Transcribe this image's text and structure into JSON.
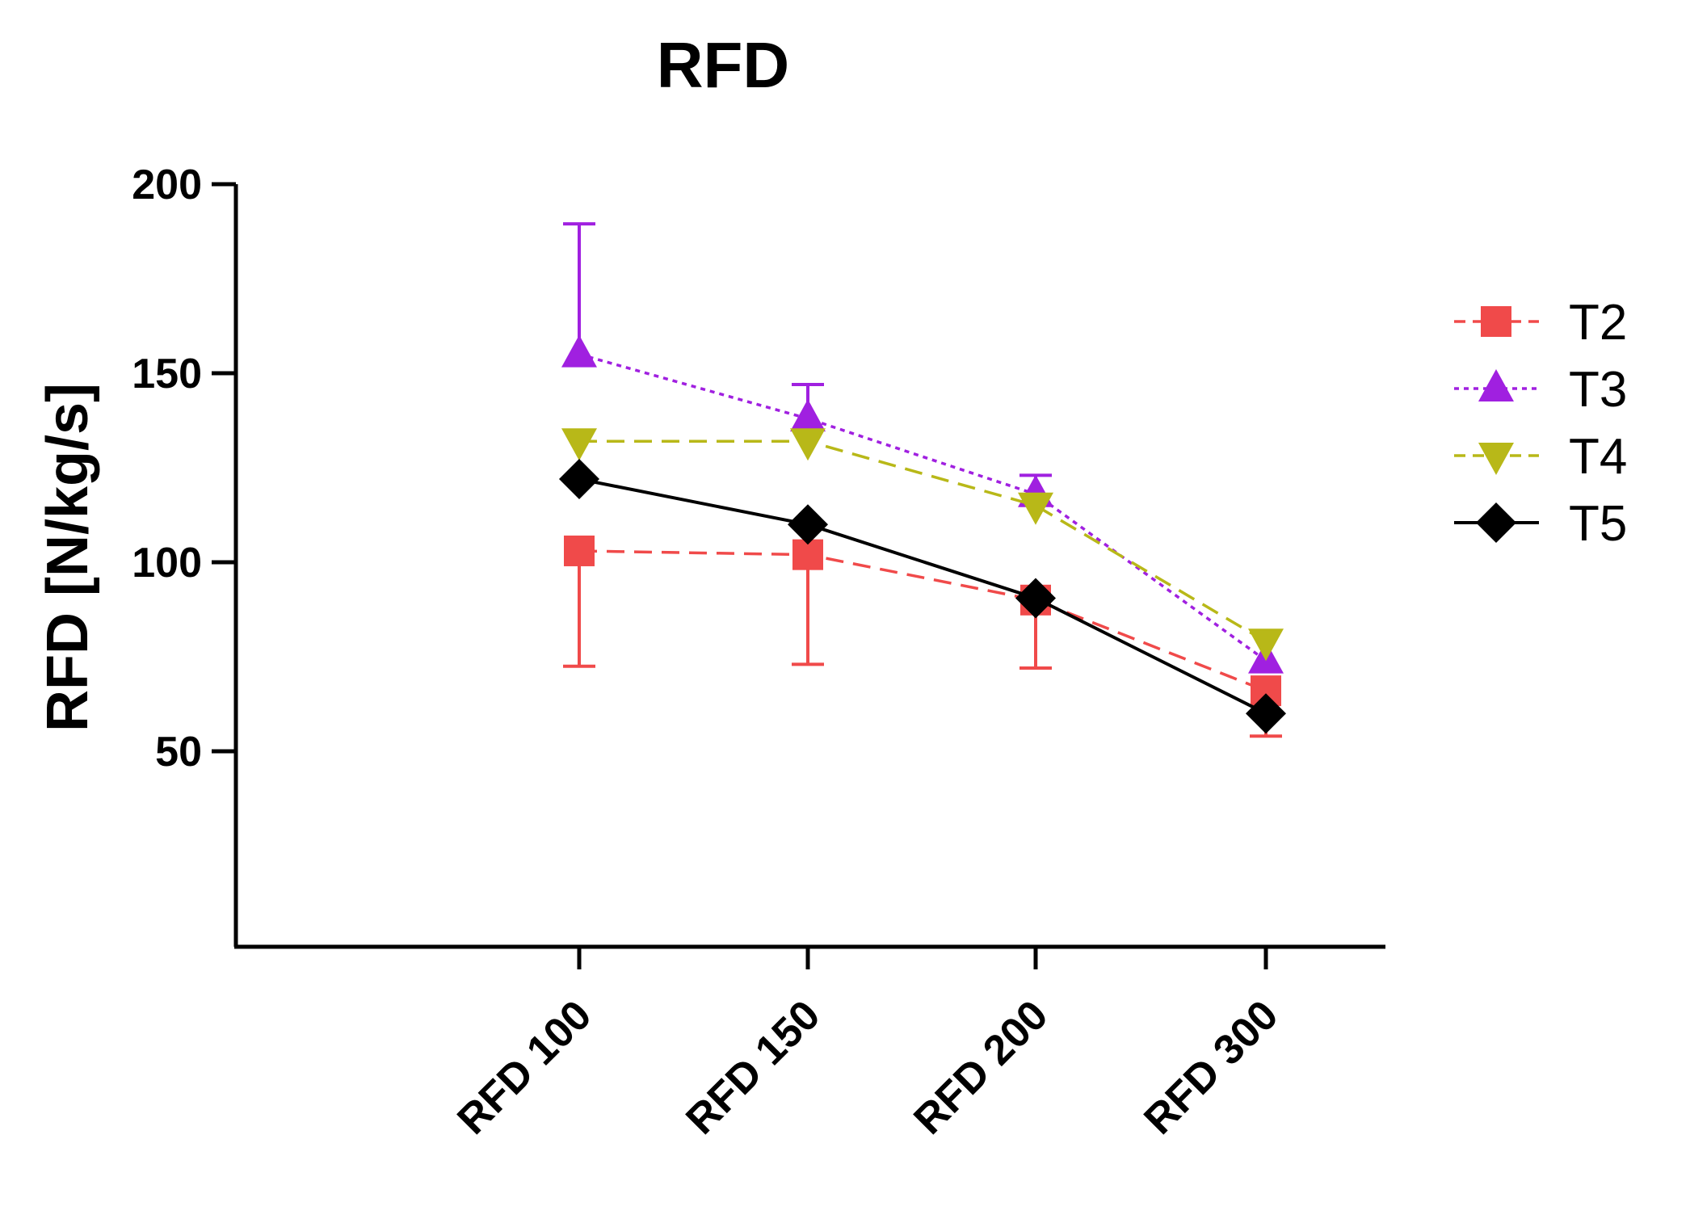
{
  "chart_data": {
    "type": "line",
    "title": "RFD",
    "xlabel": "",
    "ylabel": "RFD [N/kg/s]",
    "categories": [
      "RFD 100",
      "RFD 150",
      "RFD 200",
      "RFD 300"
    ],
    "yticks": [
      50,
      100,
      150,
      200
    ],
    "ylim": [
      2,
      200
    ],
    "legend_position": "right",
    "series": [
      {
        "name": "T2",
        "color": "#f04a4a",
        "marker": "square",
        "line_style": "dashed",
        "values": [
          103,
          102,
          90,
          66
        ],
        "error_lower": [
          72.5,
          73,
          72,
          54
        ],
        "error_upper": null
      },
      {
        "name": "T3",
        "color": "#a020e0",
        "marker": "triangle-up",
        "line_style": "dotted",
        "values": [
          155,
          138,
          118,
          74
        ],
        "error_lower": null,
        "error_upper": [
          189.5,
          147,
          123,
          null
        ]
      },
      {
        "name": "T4",
        "color": "#b8b818",
        "marker": "triangle-down",
        "line_style": "dashed",
        "values": [
          132,
          132,
          115,
          79
        ],
        "error_lower": null,
        "error_upper": null
      },
      {
        "name": "T5",
        "color": "#000000",
        "marker": "diamond",
        "line_style": "solid",
        "values": [
          122,
          110,
          90.5,
          60
        ],
        "error_lower": null,
        "error_upper": null
      }
    ]
  }
}
